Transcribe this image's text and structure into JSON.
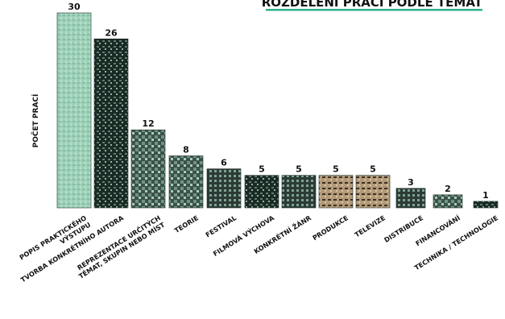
{
  "chart_data": {
    "type": "bar",
    "title": "ROZDĚLENÍ PRACÍ PODLE TÉMAT",
    "ylabel": "POČET PRACÍ",
    "xlabel": "",
    "ylim": [
      0,
      30
    ],
    "grid": false,
    "legend": "none",
    "categories": [
      [
        "POPIS PRAKTICKÉHO",
        "VÝSTUPU"
      ],
      [
        "TVORBA KONKRÉTNÍHO AUTORA"
      ],
      [
        "REPREZENTACE URČITÝCH",
        "TÉMAT, SKUPIN NEBO MÍST"
      ],
      [
        "TEORIE"
      ],
      [
        "FESTIVAL"
      ],
      [
        "FILMOVÁ VÝCHOVA"
      ],
      [
        "KONKRÉTNÍ ŽÁNR"
      ],
      [
        "PRODUKCE"
      ],
      [
        "TELEVIZE"
      ],
      [
        "DISTRIBUCE"
      ],
      [
        "FINANCOVÁNÍ"
      ],
      [
        "TECHNIKA / TECHNOLOGIE"
      ]
    ],
    "values": [
      30,
      26,
      12,
      8,
      6,
      5,
      5,
      5,
      5,
      3,
      2,
      1
    ],
    "colors": {
      "bar_tint": "#9ed1b8",
      "bar_dark": "#1b2a24",
      "bar_mid": "#4f6f62",
      "bar_sepia": "#b39a78",
      "title_underline": "#2fb08a",
      "text": "#111111"
    }
  }
}
